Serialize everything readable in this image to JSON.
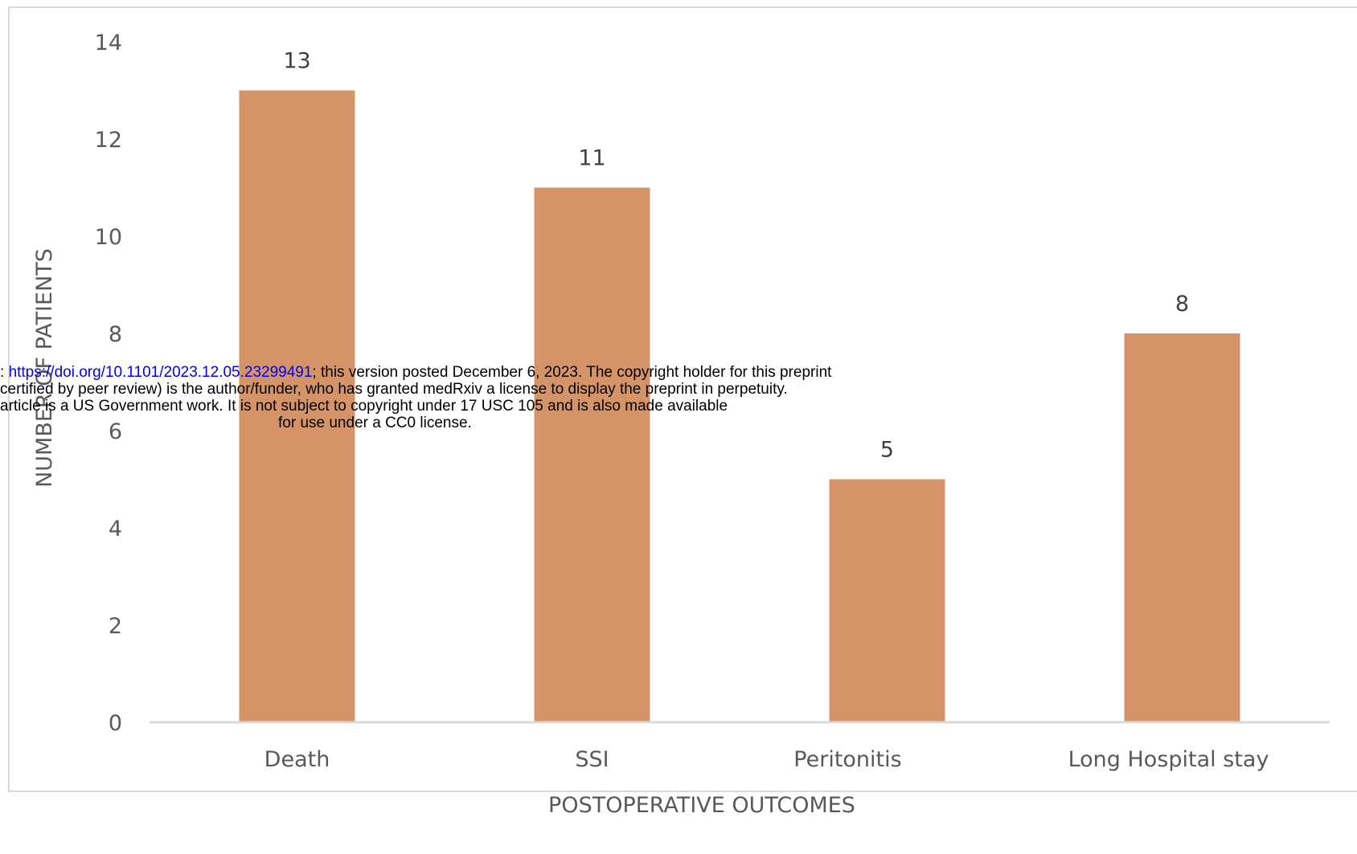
{
  "chart_data": {
    "type": "bar",
    "categories": [
      "Death",
      "SSI",
      "Peritonitis",
      "Long Hospital stay"
    ],
    "values": [
      13,
      11,
      5,
      8
    ],
    "title": "",
    "xlabel": "POSTOPERATIVE OUTCOMES",
    "ylabel": "NUMBER OF PATIENTS",
    "ylim": [
      0,
      14
    ],
    "yticks": [
      "0",
      "2",
      "4",
      "6",
      "8",
      "10",
      "12",
      "14"
    ],
    "bar_color": "#d59468",
    "axis_color": "#d9d9d9",
    "grid": false,
    "legend": "none"
  },
  "stamp": {
    "line1_prefix": ": ",
    "line1_link": "https://doi.org/10.1101/2023.12.05.23299491",
    "line1_suffix": "; this version posted December 6, 2023. The copyright holder for this preprint",
    "line2": "certified by peer review) is the author/funder, who has granted medRxiv a license to display the preprint in perpetuity.",
    "line3": "article is a US Government work. It is not subject to copyright under 17 USC 105 and is also made available",
    "line4": "for use under a CC0 license."
  }
}
